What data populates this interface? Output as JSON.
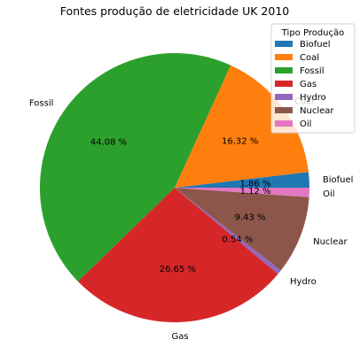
{
  "chart_data": {
    "type": "pie",
    "title": "Fontes produção de eletricidade UK 2010",
    "legend_title": "Tipo Produção",
    "legend_position": "top-right",
    "start_angle_deg": 0,
    "direction": "counterclockwise",
    "slices": [
      {
        "label": "Biofuel",
        "value": 1.86,
        "pct_label": "1.86 %",
        "color": "#1f77b4"
      },
      {
        "label": "Coal",
        "value": 16.32,
        "pct_label": "16.32 %",
        "color": "#ff7f0e"
      },
      {
        "label": "Fossil",
        "value": 44.08,
        "pct_label": "44.08 %",
        "color": "#2ca02c"
      },
      {
        "label": "Gas",
        "value": 26.65,
        "pct_label": "26.65 %",
        "color": "#d62728"
      },
      {
        "label": "Hydro",
        "value": 0.54,
        "pct_label": "0.54 %",
        "color": "#9467bd"
      },
      {
        "label": "Nuclear",
        "value": 9.43,
        "pct_label": "9.43 %",
        "color": "#8c564b"
      },
      {
        "label": "Oil",
        "value": 1.12,
        "pct_label": "1.12 %",
        "color": "#e377c2"
      }
    ]
  }
}
